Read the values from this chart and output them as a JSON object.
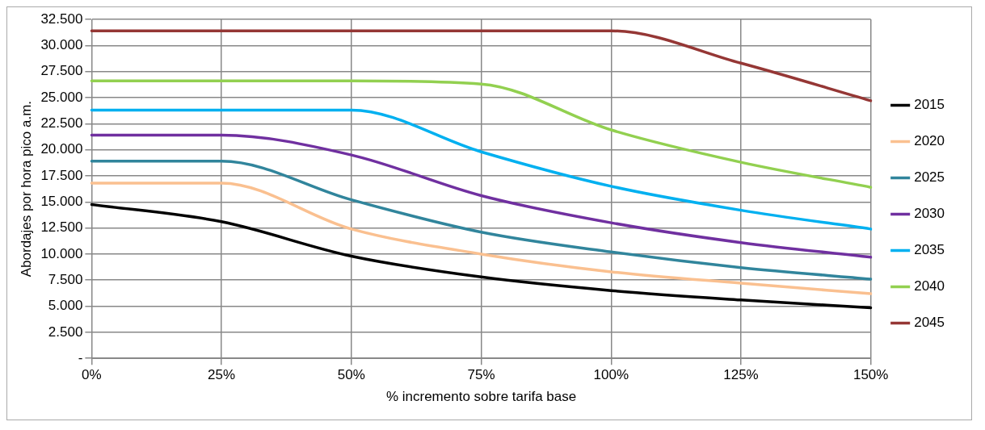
{
  "chart_data": {
    "type": "line",
    "xlabel": "% incremento sobre tarifa base",
    "ylabel": "Abordajes por hora pico a.m.",
    "categories": [
      "0%",
      "25%",
      "50%",
      "75%",
      "100%",
      "125%",
      "150%"
    ],
    "series": [
      {
        "name": "2015",
        "color": "#000000",
        "values": [
          14750,
          13100,
          9800,
          7800,
          6500,
          5600,
          4850
        ]
      },
      {
        "name": "2020",
        "color": "#fac090",
        "values": [
          16800,
          16800,
          12400,
          10000,
          8300,
          7200,
          6200
        ]
      },
      {
        "name": "2025",
        "color": "#31859c",
        "values": [
          18900,
          18900,
          15200,
          12100,
          10200,
          8700,
          7600
        ]
      },
      {
        "name": "2030",
        "color": "#7030a0",
        "values": [
          21400,
          21400,
          19500,
          15600,
          13000,
          11100,
          9700
        ]
      },
      {
        "name": "2035",
        "color": "#00b0f0",
        "values": [
          23800,
          23800,
          23800,
          19800,
          16500,
          14200,
          12400
        ]
      },
      {
        "name": "2040",
        "color": "#92d050",
        "values": [
          26600,
          26600,
          26600,
          26300,
          21900,
          18800,
          16400
        ]
      },
      {
        "name": "2045",
        "color": "#953735",
        "values": [
          31400,
          31400,
          31400,
          31400,
          31400,
          28300,
          24700
        ]
      }
    ],
    "ylim": [
      0,
      32500
    ],
    "yticks": [
      {
        "value": 0,
        "label": "-"
      },
      {
        "value": 2500,
        "label": "2.500"
      },
      {
        "value": 5000,
        "label": "5.000"
      },
      {
        "value": 7500,
        "label": "7.500"
      },
      {
        "value": 10000,
        "label": "10.000"
      },
      {
        "value": 12500,
        "label": "12.500"
      },
      {
        "value": 15000,
        "label": "15.000"
      },
      {
        "value": 17500,
        "label": "17.500"
      },
      {
        "value": 20000,
        "label": "20.000"
      },
      {
        "value": 22500,
        "label": "22.500"
      },
      {
        "value": 25000,
        "label": "25.000"
      },
      {
        "value": 27500,
        "label": "27.500"
      },
      {
        "value": 30000,
        "label": "30.000"
      },
      {
        "value": 32500,
        "label": "32.500"
      }
    ],
    "grid": true,
    "legend": "right",
    "marker": "none",
    "line_style": "solid"
  }
}
